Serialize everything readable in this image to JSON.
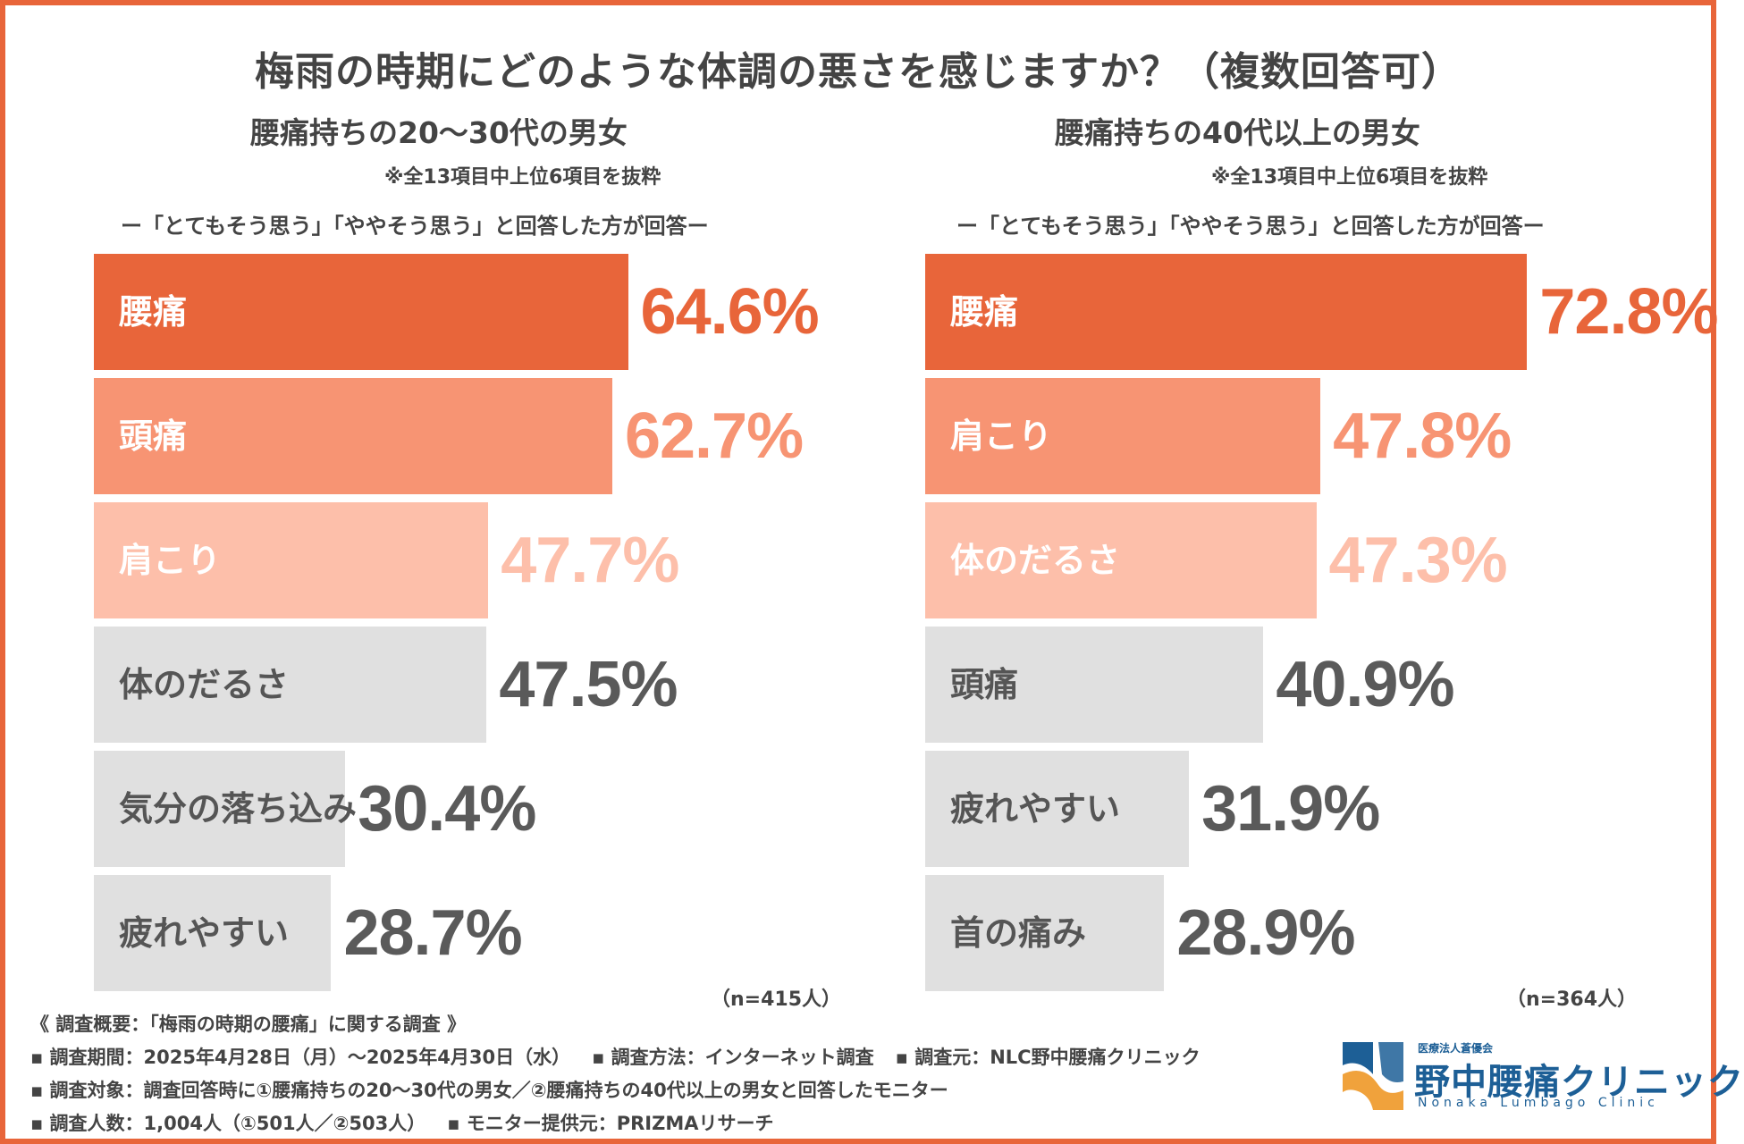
{
  "title": "梅雨の時期にどのような体調の悪さを感じますか？（複数回答可）",
  "colors": {
    "rank1": "#e8653a",
    "rank2": "#f79473",
    "rank3": "#fdbfaa",
    "rest": "#e0e0e0",
    "rest_value": "#5a5a5a",
    "rest_label": "#555555",
    "frame": "#e8653a",
    "logo": "#1d5f96",
    "logo_accent": "#f0a23c"
  },
  "chart_data": [
    {
      "type": "bar",
      "orientation": "horizontal",
      "title": "腰痛持ちの20〜30代の男女",
      "note": "※全13項目中上位6項目を抜粋",
      "caption": "ー「とてもそう思う」「ややそう思う」と回答した方が回答ー",
      "categories": [
        "腰痛",
        "頭痛",
        "肩こり",
        "体のだるさ",
        "気分の落ち込み",
        "疲れやすい"
      ],
      "values": [
        64.6,
        62.7,
        47.7,
        47.5,
        30.4,
        28.7
      ],
      "value_labels": [
        "64.6%",
        "62.7%",
        "47.7%",
        "47.5%",
        "30.4%",
        "28.7%"
      ],
      "xlim": [
        0,
        100
      ],
      "n_label": "（n=415人）"
    },
    {
      "type": "bar",
      "orientation": "horizontal",
      "title": "腰痛持ちの40代以上の男女",
      "note": "※全13項目中上位6項目を抜粋",
      "caption": "ー「とてもそう思う」「ややそう思う」と回答した方が回答ー",
      "categories": [
        "腰痛",
        "肩こり",
        "体のだるさ",
        "頭痛",
        "疲れやすい",
        "首の痛み"
      ],
      "values": [
        72.8,
        47.8,
        47.3,
        40.9,
        31.9,
        28.9
      ],
      "value_labels": [
        "72.8%",
        "47.8%",
        "47.3%",
        "40.9%",
        "31.9%",
        "28.9%"
      ],
      "xlim": [
        0,
        100
      ],
      "n_label": "（n=364人）"
    }
  ],
  "footer": {
    "summary": "《 調査概要：「梅雨の時期の腰痛」に関する調査 》",
    "period": "▪ 調査期間：2025年4月28日（月）〜2025年4月30日（水）",
    "method": "▪ 調査方法：インターネット調査",
    "source": "▪ 調査元：NLC野中腰痛クリニック",
    "target": "▪ 調査対象：調査回答時に①腰痛持ちの20〜30代の男女／②腰痛持ちの40代以上の男女と回答したモニター",
    "count": "▪ 調査人数：1,004人（①501人／②503人）",
    "monitor": "▪ モニター提供元：PRIZMAリサーチ"
  },
  "logo": {
    "org": "医療法人蒼優会",
    "name": "野中腰痛クリニック",
    "sub": "Nonaka Lumbago Clinic"
  }
}
